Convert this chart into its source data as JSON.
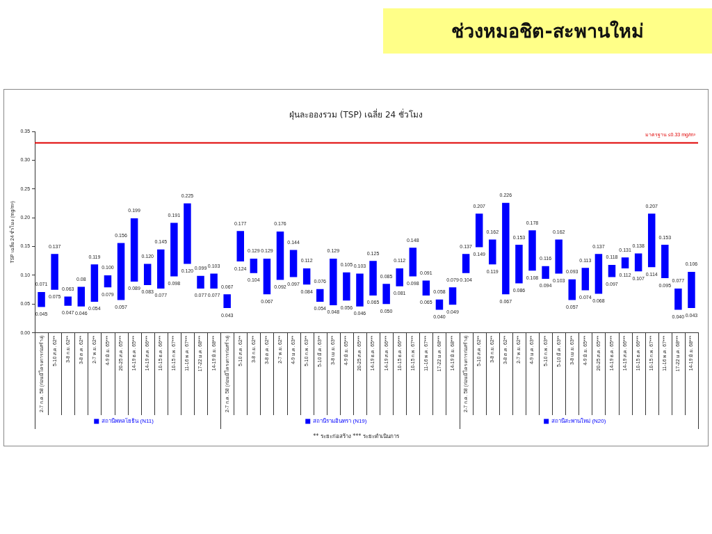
{
  "chart_data": {
    "type": "bar",
    "title": "ช่วงหมอชิต-สะพานใหม่",
    "subtitle": "ฝุ่นละอองรวม (TSP) เฉลี่ย 24 ชั่วโมง",
    "ylabel": "TSP เฉลี่ย 24 ชั่วโมง (mg/m³)",
    "categories": [
      "2-7 ก.ค. 58 (ก่อนมีโครงการก่อสร้าง)",
      "5-10 ส.ค. 62**",
      "3-8 ก.ย. 62**",
      "3-8 ต.ค. 62**",
      "2-7 พ.ย. 62**",
      "4-9 มิ.ย. 65***",
      "20-25 ส.ค. 65***",
      "14-19 ธ.ค. 65***",
      "14-19 ส.ค. 66***",
      "10-15 ธ.ค. 66***",
      "10-15 ก.พ. 67***",
      "11-16 พ.ค. 67***",
      "17-22 ม.ค. 68***",
      "14-19 มิ.ย. 68***",
      "2-7 ก.ค. 58 (ก่อนมีโครงการก่อสร้าง)",
      "5-10 ส.ค. 62**",
      "3-8 ก.ย. 62**",
      "3-8 ต.ค. 62**",
      "2-7 พ.ย. 62**",
      "4-9 ม.ค. 63**",
      "5-10 ก.พ. 63**",
      "5-10 มี.ค. 63**",
      "3-8 เม.ย. 63**",
      "4-9 มิ.ย. 65***",
      "20-25 ส.ค. 65***",
      "14-19 ธ.ค. 65***",
      "14-19 ส.ค. 66***",
      "10-15 ธ.ค. 66***",
      "10-15 ก.พ. 67***",
      "11-16 พ.ค. 67***",
      "17-22 ม.ค. 68***",
      "14-19 มิ.ย. 68***",
      "2-7 ก.ค. 58 (ก่อนมีโครงการก่อสร้าง)",
      "5-10 ส.ค. 62**",
      "3-8 ก.ย. 62**",
      "3-8 ต.ค. 62**",
      "2-7 พ.ย. 62**",
      "4-9 ม.ค. 63**",
      "5-10 ก.พ. 63**",
      "5-10 มี.ค. 63**",
      "3-8 เม.ย. 63**",
      "4-9 มิ.ย. 65***",
      "20-25 ส.ค. 65***",
      "14-19 ธ.ค. 65***",
      "14-19 ส.ค. 66***",
      "10-15 ธ.ค. 66***",
      "10-15 ก.พ. 67***",
      "11-16 พ.ค. 67***",
      "17-22 ม.ค. 68***",
      "14-19 มิ.ย. 68***"
    ],
    "series": [
      {
        "name": "สถานีพหลโยธิน (N11)",
        "color": "#0000ff",
        "base": [
          0.045,
          0.075,
          0.047,
          0.046,
          0.054,
          0.079,
          0.057,
          0.089,
          0.083,
          0.077,
          0.098,
          0.12,
          0.077,
          0.077,
          null,
          null,
          null,
          null,
          null,
          null,
          null,
          null,
          null,
          null,
          null,
          null,
          null,
          null,
          null,
          null,
          null,
          null,
          null,
          null,
          null,
          null,
          null,
          null,
          null,
          null,
          null,
          null,
          null,
          null,
          null,
          null,
          null,
          null,
          null,
          null
        ],
        "values": [
          0.026,
          0.062,
          0.016,
          0.034,
          0.065,
          0.021,
          0.099,
          0.11,
          0.037,
          0.068,
          0.093,
          0.105,
          0.022,
          0.026,
          null,
          null,
          null,
          null,
          null,
          null,
          null,
          null,
          null,
          null,
          null,
          null,
          null,
          null,
          null,
          null,
          null,
          null,
          null,
          null,
          null,
          null,
          null,
          null,
          null,
          null,
          null,
          null,
          null,
          null,
          null,
          null,
          null,
          null,
          null,
          null
        ],
        "value_labels": [
          [
            "0.071",
            "0.045"
          ],
          [
            "0.137",
            "0.075"
          ],
          [
            "0.063",
            "0.047"
          ],
          [
            "0.08",
            "0.046"
          ],
          [
            "0.119",
            "0.054"
          ],
          [
            "0.100",
            "0.079"
          ],
          [
            "0.156",
            "0.057"
          ],
          [
            "0.199",
            "0.089"
          ],
          [
            "0.120",
            "0.083"
          ],
          [
            "0.145",
            "0.077"
          ],
          [
            "0.191",
            "0.098"
          ],
          [
            "0.225",
            "0.120"
          ],
          [
            "0.099",
            "0.077"
          ],
          [
            "0.103",
            "0.077"
          ],
          null,
          null,
          null,
          null,
          null,
          null,
          null,
          null,
          null,
          null,
          null,
          null,
          null,
          null,
          null,
          null,
          null,
          null,
          null,
          null,
          null,
          null,
          null,
          null,
          null,
          null,
          null,
          null,
          null,
          null,
          null,
          null,
          null,
          null,
          null,
          null
        ]
      },
      {
        "name": "สถานีรามอินทรา (N19)",
        "color": "#0000ff",
        "base": [
          null,
          null,
          null,
          null,
          null,
          null,
          null,
          null,
          null,
          null,
          null,
          null,
          null,
          null,
          0.043,
          0.124,
          0.104,
          0.067,
          0.092,
          0.097,
          0.084,
          0.054,
          0.048,
          0.056,
          0.046,
          0.065,
          0.05,
          0.081,
          0.098,
          0.065,
          0.04,
          0.049,
          null,
          null,
          null,
          null,
          null,
          null,
          null,
          null,
          null,
          null,
          null,
          null,
          null,
          null,
          null,
          null,
          null,
          null
        ],
        "values": [
          null,
          null,
          null,
          null,
          null,
          null,
          null,
          null,
          null,
          null,
          null,
          null,
          null,
          null,
          0.024,
          0.053,
          0.025,
          0.062,
          0.084,
          0.047,
          0.028,
          0.022,
          0.081,
          0.049,
          0.057,
          0.06,
          0.035,
          0.031,
          0.05,
          0.026,
          0.018,
          0.03,
          null,
          null,
          null,
          null,
          null,
          null,
          null,
          null,
          null,
          null,
          null,
          null,
          null,
          null,
          null,
          null,
          null,
          null
        ],
        "value_labels": [
          null,
          null,
          null,
          null,
          null,
          null,
          null,
          null,
          null,
          null,
          null,
          null,
          null,
          null,
          [
            "0.067",
            "0.043"
          ],
          [
            "0.177",
            "0.124"
          ],
          [
            "0.129",
            "0.104"
          ],
          [
            "0.129",
            "0.067"
          ],
          [
            "0.176",
            "0.092"
          ],
          [
            "0.144",
            "0.097"
          ],
          [
            "0.112",
            "0.084"
          ],
          [
            "0.076",
            "0.054"
          ],
          [
            "0.129",
            "0.048"
          ],
          [
            "0.105",
            "0.056"
          ],
          [
            "0.103",
            "0.046"
          ],
          [
            "0.125",
            "0.065"
          ],
          [
            "0.085",
            "0.050"
          ],
          [
            "0.112",
            "0.081"
          ],
          [
            "0.148",
            "0.098"
          ],
          [
            "0.091",
            "0.065"
          ],
          [
            "0.058",
            "0.040"
          ],
          [
            "0.079",
            "0.049"
          ],
          null,
          null,
          null,
          null,
          null,
          null,
          null,
          null,
          null,
          null,
          null,
          null,
          null,
          null,
          null,
          null,
          null,
          null
        ]
      },
      {
        "name": "สถานีสะพานใหม่ (N20)",
        "color": "#0000ff",
        "base": [
          null,
          null,
          null,
          null,
          null,
          null,
          null,
          null,
          null,
          null,
          null,
          null,
          null,
          null,
          null,
          null,
          null,
          null,
          null,
          null,
          null,
          null,
          null,
          null,
          null,
          null,
          null,
          null,
          null,
          null,
          null,
          null,
          0.104,
          0.149,
          0.119,
          0.067,
          0.086,
          0.108,
          0.094,
          0.103,
          0.057,
          0.074,
          0.068,
          0.097,
          0.112,
          0.107,
          0.114,
          0.095,
          0.04,
          0.043
        ],
        "values": [
          null,
          null,
          null,
          null,
          null,
          null,
          null,
          null,
          null,
          null,
          null,
          null,
          null,
          null,
          null,
          null,
          null,
          null,
          null,
          null,
          null,
          null,
          null,
          null,
          null,
          null,
          null,
          null,
          null,
          null,
          null,
          null,
          0.033,
          0.058,
          0.043,
          0.159,
          0.067,
          0.07,
          0.022,
          0.059,
          0.036,
          0.039,
          0.069,
          0.021,
          0.019,
          0.031,
          0.093,
          0.058,
          0.037,
          0.063
        ],
        "value_labels": [
          null,
          null,
          null,
          null,
          null,
          null,
          null,
          null,
          null,
          null,
          null,
          null,
          null,
          null,
          null,
          null,
          null,
          null,
          null,
          null,
          null,
          null,
          null,
          null,
          null,
          null,
          null,
          null,
          null,
          null,
          null,
          null,
          [
            "0.137",
            "0.104"
          ],
          [
            "0.207",
            "0.149"
          ],
          [
            "0.162",
            "0.119"
          ],
          [
            "0.226",
            "0.067"
          ],
          [
            "0.153",
            "0.086"
          ],
          [
            "0.178",
            "0.108"
          ],
          [
            "0.116",
            "0.094"
          ],
          [
            "0.162",
            "0.103"
          ],
          [
            "0.093",
            "0.057"
          ],
          [
            "0.113",
            "0.074"
          ],
          [
            "0.137",
            "0.068"
          ],
          [
            "0.118",
            "0.097"
          ],
          [
            "0.131",
            "0.112"
          ],
          [
            "0.138",
            "0.107"
          ],
          [
            "0.207",
            "0.114"
          ],
          [
            "0.153",
            "0.095"
          ],
          [
            "0.077",
            "0.040"
          ],
          [
            "0.106",
            "0.043"
          ]
        ]
      }
    ],
    "ylim": [
      0,
      0.35
    ],
    "yticks": [
      {
        "value": 0,
        "label": "0.00"
      },
      {
        "value": 0.05,
        "label": "0.05"
      },
      {
        "value": 0.1,
        "label": "0.10"
      },
      {
        "value": 0.15,
        "label": "0.15"
      },
      {
        "value": 0.2,
        "label": "0.20"
      },
      {
        "value": 0.25,
        "label": "0.25"
      },
      {
        "value": 0.3,
        "label": "0.30"
      },
      {
        "value": 0.35,
        "label": "0.35"
      }
    ],
    "ref_lines": [
      {
        "axis": "y",
        "value": 0.33,
        "label": "มาตรฐาน ≤0.33 mg/m³",
        "color": "#e00000"
      }
    ],
    "legend": "bottom",
    "annotations": [
      "** ระยะก่อสร้าง   *** ระยะดำเนินการ"
    ]
  }
}
